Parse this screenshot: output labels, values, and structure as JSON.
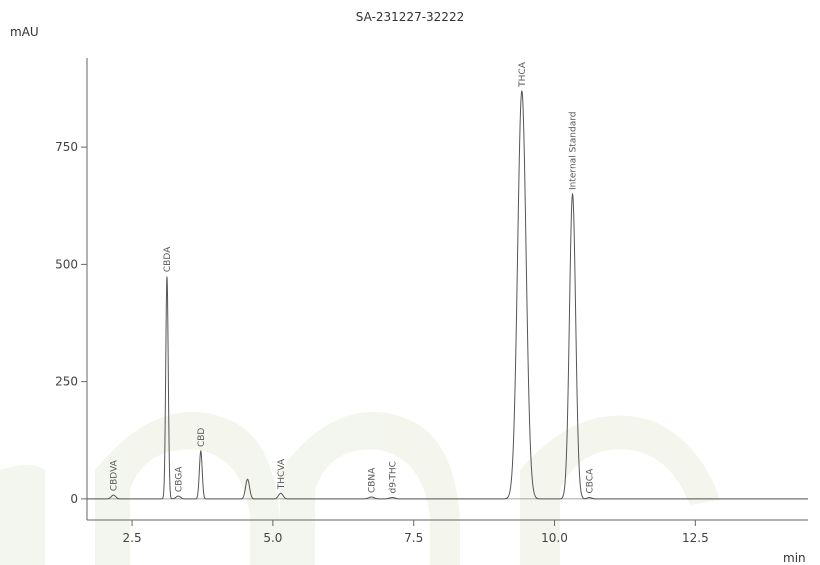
{
  "chart_data": {
    "type": "line",
    "title": "SA-231227-32222",
    "ylabel": "mAU",
    "xlabel": "min",
    "xlim": [
      1.7,
      14.5
    ],
    "ylim": [
      -45,
      940
    ],
    "x_ticks": [
      2.5,
      5.0,
      7.5,
      10.0,
      12.5
    ],
    "x_tick_labels": [
      "2.5",
      "5.0",
      "7.5",
      "10.0",
      "12.5"
    ],
    "y_ticks": [
      0,
      250,
      500,
      750
    ],
    "y_tick_labels": [
      "0",
      "250",
      "500",
      "750"
    ],
    "grid": false,
    "colors": {
      "trace": "#555555",
      "axis": "#666666",
      "watermark": "#f1f4ea"
    },
    "peaks": [
      {
        "label": "CBDVA",
        "rt": 2.17,
        "height": 8,
        "width": 0.04
      },
      {
        "label": "CBDA",
        "rt": 3.12,
        "height": 475,
        "width": 0.022
      },
      {
        "label": "CBGA",
        "rt": 3.32,
        "height": 6,
        "width": 0.04
      },
      {
        "label": "CBD",
        "rt": 3.72,
        "height": 102,
        "width": 0.025
      },
      {
        "label": "",
        "rt": 4.55,
        "height": 42,
        "width": 0.035
      },
      {
        "label": "THCVA",
        "rt": 5.14,
        "height": 12,
        "width": 0.04
      },
      {
        "label": "CBNA",
        "rt": 6.75,
        "height": 4,
        "width": 0.05
      },
      {
        "label": "d9-THC",
        "rt": 7.12,
        "height": 3,
        "width": 0.05
      },
      {
        "label": "THCA",
        "rt": 9.42,
        "height": 870,
        "width": 0.075
      },
      {
        "label": "Internal Standard",
        "rt": 10.32,
        "height": 650,
        "width": 0.055
      },
      {
        "label": "CBCA",
        "rt": 10.62,
        "height": 3,
        "width": 0.04
      }
    ]
  }
}
